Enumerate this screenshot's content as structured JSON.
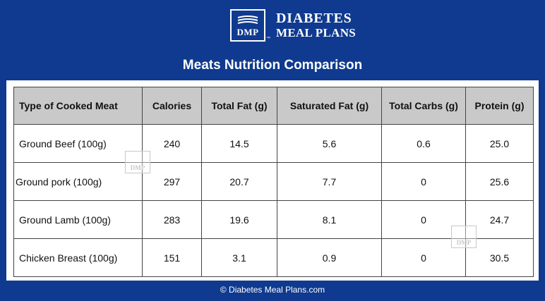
{
  "brand": {
    "monogram": "DMP",
    "trademark": "™",
    "line1": "DIABETES",
    "line2": "MEAL PLANS"
  },
  "title": "Meats Nutrition Comparison",
  "table": {
    "headers": [
      "Type of Cooked Meat",
      "Calories",
      "Total Fat (g)",
      "Saturated Fat (g)",
      "Total Carbs (g)",
      "Protein (g)"
    ],
    "rows": [
      [
        "Ground Beef (100g)",
        "240",
        "14.5",
        "5.6",
        "0.6",
        "25.0"
      ],
      [
        "Ground pork (100g)",
        "297",
        "20.7",
        "7.7",
        "0",
        "25.6"
      ],
      [
        "Ground Lamb (100g)",
        "283",
        "19.6",
        "8.1",
        "0",
        "24.7"
      ],
      [
        "Chicken Breast (100g)",
        "151",
        "3.1",
        "0.9",
        "0",
        "30.5"
      ]
    ]
  },
  "watermark": "DMP",
  "footer": "© Diabetes Meal Plans.com",
  "colors": {
    "background": "#0f3a8f",
    "header_row": "#c9c9c9",
    "text": "#111111"
  }
}
